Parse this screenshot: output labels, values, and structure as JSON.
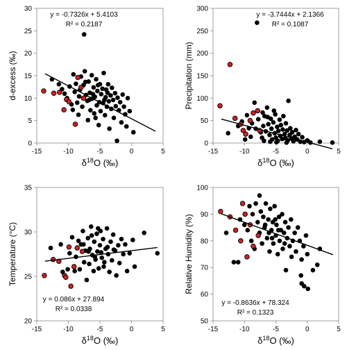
{
  "chart_data": [
    {
      "type": "scatter",
      "xlabel": "δ18O (‰)",
      "ylabel": "d-excess (‰)",
      "xlim": [
        -15,
        5
      ],
      "ylim": [
        0,
        30
      ],
      "xticks": [
        -15,
        -10,
        -5,
        0,
        5
      ],
      "yticks": [
        0,
        5,
        10,
        15,
        20,
        25,
        30
      ],
      "xtick_labels": [
        "-15",
        "-10",
        "-5",
        "0",
        "5"
      ],
      "ytick_labels": [
        "0",
        "5",
        "10",
        "15",
        "20",
        "25",
        "30"
      ],
      "equation": "y = -0.7326x + 5.4103",
      "r2": "R² = 0.2187",
      "trendline": {
        "slope": -0.7326,
        "intercept": 5.4103,
        "x_range": [
          -13.7,
          3.8
        ]
      },
      "colors": {
        "black_points": "#000000",
        "red_points": "#cc2222"
      },
      "red_points": [
        [
          -13.9,
          11.6
        ],
        [
          -12.3,
          11.1
        ],
        [
          -11.4,
          11.3
        ],
        [
          -10.7,
          7.4
        ],
        [
          -10.3,
          9.7
        ],
        [
          -9.9,
          9.2
        ],
        [
          -8.9,
          4.2
        ],
        [
          -8.5,
          14.6
        ],
        [
          -8.0,
          12.4
        ],
        [
          -7.6,
          10.0
        ]
      ],
      "black_points": [
        [
          -7.5,
          24.2
        ],
        [
          -12.6,
          14.2
        ],
        [
          -11.5,
          13.1
        ],
        [
          -11.0,
          12.0
        ],
        [
          -10.6,
          11.0
        ],
        [
          -10.2,
          10.0
        ],
        [
          -9.8,
          12.6
        ],
        [
          -9.5,
          8.6
        ],
        [
          -9.2,
          15.3
        ],
        [
          -9.0,
          11.4
        ],
        [
          -8.8,
          13.2
        ],
        [
          -8.6,
          9.0
        ],
        [
          -8.4,
          6.3
        ],
        [
          -8.2,
          11.8
        ],
        [
          -8.0,
          14.8
        ],
        [
          -7.8,
          8.1
        ],
        [
          -7.6,
          12.9
        ],
        [
          -7.4,
          16.0
        ],
        [
          -7.2,
          10.7
        ],
        [
          -7.0,
          9.4
        ],
        [
          -6.9,
          5.1
        ],
        [
          -6.8,
          13.7
        ],
        [
          -6.6,
          11.2
        ],
        [
          -6.5,
          7.3
        ],
        [
          -6.3,
          15.1
        ],
        [
          -6.2,
          9.9
        ],
        [
          -6.0,
          12.4
        ],
        [
          -5.9,
          6.6
        ],
        [
          -5.8,
          10.3
        ],
        [
          -5.6,
          14.2
        ],
        [
          -5.5,
          8.4
        ],
        [
          -5.4,
          11.6
        ],
        [
          -5.2,
          4.0
        ],
        [
          -5.1,
          9.1
        ],
        [
          -5.0,
          13.1
        ],
        [
          -4.9,
          7.1
        ],
        [
          -4.8,
          10.9
        ],
        [
          -4.6,
          12.1
        ],
        [
          -4.5,
          8.9
        ],
        [
          -4.4,
          15.6
        ],
        [
          -4.2,
          6.2
        ],
        [
          -4.1,
          10.2
        ],
        [
          -4.0,
          11.9
        ],
        [
          -3.9,
          8.1
        ],
        [
          -3.7,
          13.1
        ],
        [
          -3.6,
          9.3
        ],
        [
          -3.5,
          3.2
        ],
        [
          -3.3,
          10.6
        ],
        [
          -3.2,
          7.6
        ],
        [
          -3.1,
          12.3
        ],
        [
          -2.9,
          9.6
        ],
        [
          -2.8,
          5.6
        ],
        [
          -2.6,
          11.1
        ],
        [
          -2.5,
          8.2
        ],
        [
          -2.3,
          0.5
        ],
        [
          -2.2,
          10.1
        ],
        [
          -2.0,
          7.3
        ],
        [
          -1.8,
          9.1
        ],
        [
          -1.6,
          4.6
        ],
        [
          -1.4,
          10.8
        ],
        [
          -1.2,
          8.1
        ],
        [
          -1.0,
          6.4
        ],
        [
          -0.8,
          3.7
        ],
        [
          -0.6,
          10.0
        ],
        [
          -0.3,
          7.1
        ],
        [
          0.3,
          2.4
        ],
        [
          -6.7,
          9.6
        ],
        [
          -7.3,
          13.6
        ],
        [
          -5.3,
          12.9
        ],
        [
          -4.3,
          9.6
        ],
        [
          -3.8,
          11.2
        ],
        [
          -6.1,
          10.9
        ],
        [
          -8.3,
          10.4
        ],
        [
          -9.3,
          7.4
        ],
        [
          -5.7,
          5.6
        ]
      ]
    },
    {
      "type": "scatter",
      "xlabel": "δ18O (‰)",
      "ylabel": "Precipitation (mm)",
      "xlim": [
        -15,
        5
      ],
      "ylim": [
        0,
        300
      ],
      "xticks": [
        -15,
        -10,
        -5,
        0,
        5
      ],
      "yticks": [
        0,
        50,
        100,
        150,
        200,
        250,
        300
      ],
      "xtick_labels": [
        "-15",
        "-10",
        "-5",
        "0",
        "5"
      ],
      "ytick_labels": [
        "0",
        "50",
        "100",
        "150",
        "200",
        "250",
        "300"
      ],
      "equation": "y = -3.7444x + 2.1366",
      "r2": "R² = 0.1087",
      "trendline": {
        "slope": -3.7444,
        "intercept": 2.1366,
        "x_range": [
          -13.7,
          4.0
        ]
      },
      "colors": {
        "black_points": "#000000",
        "red_points": "#cc2222"
      },
      "red_points": [
        [
          -13.9,
          83
        ],
        [
          -12.3,
          175
        ],
        [
          -11.5,
          55
        ],
        [
          -10.6,
          42
        ],
        [
          -10.2,
          28
        ],
        [
          -9.8,
          20
        ],
        [
          -9.1,
          50
        ],
        [
          -8.6,
          67
        ],
        [
          -7.9,
          72
        ],
        [
          -7.6,
          28
        ]
      ],
      "black_points": [
        [
          -8.0,
          268
        ],
        [
          -12.6,
          22
        ],
        [
          -11.0,
          38
        ],
        [
          -10.4,
          48
        ],
        [
          -9.6,
          62
        ],
        [
          -9.3,
          33
        ],
        [
          -9.0,
          14
        ],
        [
          -8.8,
          44
        ],
        [
          -8.4,
          90
        ],
        [
          -8.2,
          32
        ],
        [
          -7.8,
          53
        ],
        [
          -7.4,
          24
        ],
        [
          -7.2,
          12
        ],
        [
          -7.0,
          38
        ],
        [
          -6.8,
          60
        ],
        [
          -6.6,
          26
        ],
        [
          -6.4,
          79
        ],
        [
          -6.2,
          42
        ],
        [
          -6.0,
          18
        ],
        [
          -5.8,
          54
        ],
        [
          -5.7,
          32
        ],
        [
          -5.6,
          8
        ],
        [
          -5.4,
          46
        ],
        [
          -5.2,
          22
        ],
        [
          -5.1,
          64
        ],
        [
          -5.0,
          12
        ],
        [
          -4.8,
          36
        ],
        [
          -4.7,
          5
        ],
        [
          -4.6,
          27
        ],
        [
          -4.4,
          52
        ],
        [
          -4.3,
          16
        ],
        [
          -4.2,
          40
        ],
        [
          -4.0,
          9
        ],
        [
          -3.9,
          30
        ],
        [
          -3.8,
          60
        ],
        [
          -3.6,
          20
        ],
        [
          -3.5,
          11
        ],
        [
          -3.4,
          44
        ],
        [
          -3.2,
          28
        ],
        [
          -3.1,
          6
        ],
        [
          -3.0,
          94
        ],
        [
          -2.8,
          18
        ],
        [
          -2.7,
          33
        ],
        [
          -2.5,
          10
        ],
        [
          -2.4,
          24
        ],
        [
          -2.2,
          4
        ],
        [
          -2.0,
          14
        ],
        [
          -1.8,
          29
        ],
        [
          -1.6,
          8
        ],
        [
          -1.4,
          20
        ],
        [
          -1.1,
          3
        ],
        [
          -0.8,
          13
        ],
        [
          -0.5,
          2
        ],
        [
          0.0,
          6
        ],
        [
          0.5,
          1
        ],
        [
          2.0,
          3
        ],
        [
          4.0,
          1
        ],
        [
          -6.9,
          5
        ],
        [
          -5.9,
          3
        ],
        [
          -4.9,
          2
        ],
        [
          -3.3,
          1
        ],
        [
          -7.1,
          68
        ],
        [
          -6.3,
          58
        ],
        [
          -5.3,
          72
        ],
        [
          -9.9,
          8
        ]
      ]
    },
    {
      "type": "scatter",
      "xlabel": "δ18O (‰)",
      "ylabel": "Temperature (°C)",
      "xlim": [
        -15,
        5
      ],
      "ylim": [
        20,
        35
      ],
      "xticks": [
        -15,
        -10,
        -5,
        0,
        5
      ],
      "yticks": [
        20,
        25,
        30,
        35
      ],
      "xtick_labels": [
        "-15",
        "-10",
        "-5",
        "0",
        "5"
      ],
      "ytick_labels": [
        "20",
        "25",
        "30",
        "35"
      ],
      "equation": "y = 0.086x + 27.894",
      "r2": "R² = 0.0338",
      "trendline": {
        "slope": 0.086,
        "intercept": 27.894,
        "x_range": [
          -13.7,
          4.1
        ]
      },
      "colors": {
        "black_points": "#000000",
        "red_points": "#cc2222"
      },
      "red_points": [
        [
          -13.8,
          25.1
        ],
        [
          -12.4,
          26.9
        ],
        [
          -11.5,
          26.7
        ],
        [
          -10.6,
          25.1
        ],
        [
          -10.4,
          24.9
        ],
        [
          -9.9,
          28.3
        ],
        [
          -9.6,
          23.9
        ],
        [
          -9.1,
          26.1
        ],
        [
          -8.6,
          28.2
        ],
        [
          -7.8,
          27.8
        ]
      ],
      "black_points": [
        [
          -12.8,
          28.2
        ],
        [
          -11.2,
          28.6
        ],
        [
          -10.9,
          25.5
        ],
        [
          -10.1,
          25.8
        ],
        [
          -9.8,
          27.6
        ],
        [
          -9.4,
          29.4
        ],
        [
          -9.0,
          25.6
        ],
        [
          -8.8,
          27.2
        ],
        [
          -8.4,
          29.0
        ],
        [
          -8.2,
          25.8
        ],
        [
          -8.0,
          28.6
        ],
        [
          -7.7,
          30.1
        ],
        [
          -7.5,
          26.6
        ],
        [
          -7.3,
          27.9
        ],
        [
          -7.1,
          24.6
        ],
        [
          -6.9,
          29.3
        ],
        [
          -6.7,
          26.4
        ],
        [
          -6.6,
          28.1
        ],
        [
          -6.4,
          30.6
        ],
        [
          -6.2,
          27.4
        ],
        [
          -6.0,
          25.6
        ],
        [
          -5.9,
          28.9
        ],
        [
          -5.7,
          26.9
        ],
        [
          -5.5,
          29.8
        ],
        [
          -5.4,
          27.8
        ],
        [
          -5.2,
          25.9
        ],
        [
          -5.0,
          28.5
        ],
        [
          -4.9,
          30.1
        ],
        [
          -4.7,
          27.1
        ],
        [
          -4.5,
          29.2
        ],
        [
          -4.3,
          26.6
        ],
        [
          -4.1,
          28.1
        ],
        [
          -3.9,
          30.4
        ],
        [
          -3.7,
          27.5
        ],
        [
          -3.5,
          25.5
        ],
        [
          -3.3,
          28.9
        ],
        [
          -3.1,
          26.8
        ],
        [
          -2.9,
          29.7
        ],
        [
          -2.6,
          27.9
        ],
        [
          -2.4,
          25.1
        ],
        [
          -2.1,
          28.5
        ],
        [
          -1.9,
          26.5
        ],
        [
          -1.6,
          29.2
        ],
        [
          -1.3,
          27.5
        ],
        [
          -1.0,
          28.6
        ],
        [
          -0.7,
          25.6
        ],
        [
          -0.3,
          27.6
        ],
        [
          0.2,
          29.1
        ],
        [
          0.5,
          26.1
        ],
        [
          2.0,
          29.9
        ],
        [
          4.1,
          27.6
        ],
        [
          -6.8,
          27.8
        ],
        [
          -5.8,
          27.2
        ],
        [
          -4.8,
          27.7
        ],
        [
          -3.8,
          28.3
        ],
        [
          -7.6,
          28.6
        ],
        [
          -6.3,
          29.6
        ],
        [
          -5.3,
          30.4
        ],
        [
          -4.4,
          26.1
        ],
        [
          -2.8,
          28.0
        ]
      ]
    },
    {
      "type": "scatter",
      "xlabel": "δ18O (‰)",
      "ylabel": "Relative Humidity (%)",
      "xlim": [
        -15,
        5
      ],
      "ylim": [
        50,
        100
      ],
      "xticks": [
        -15,
        -10,
        -5,
        0,
        5
      ],
      "yticks": [
        50,
        60,
        70,
        80,
        90,
        100
      ],
      "xtick_labels": [
        "-15",
        "-10",
        "-5",
        "0",
        "5"
      ],
      "ytick_labels": [
        "50",
        "60",
        "70",
        "80",
        "90",
        "100"
      ],
      "equation": "y = -0.8636x + 78.324",
      "r2": "R² = 0.1323",
      "trendline": {
        "slope": -0.8636,
        "intercept": 78.324,
        "x_range": [
          -13.7,
          4.1
        ]
      },
      "colors": {
        "black_points": "#000000",
        "red_points": "#cc2222"
      },
      "red_points": [
        [
          -13.8,
          91
        ],
        [
          -12.3,
          89
        ],
        [
          -11.4,
          84
        ],
        [
          -10.6,
          80
        ],
        [
          -10.3,
          94
        ],
        [
          -9.9,
          90
        ],
        [
          -9.6,
          74
        ],
        [
          -9.1,
          86
        ],
        [
          -8.6,
          78
        ],
        [
          -7.8,
          82
        ]
      ],
      "black_points": [
        [
          -7.6,
          97
        ],
        [
          -12.9,
          83
        ],
        [
          -11.7,
          72
        ],
        [
          -11.0,
          72
        ],
        [
          -10.7,
          88
        ],
        [
          -10.0,
          86
        ],
        [
          -9.5,
          84
        ],
        [
          -9.2,
          93
        ],
        [
          -8.9,
          80
        ],
        [
          -8.7,
          90
        ],
        [
          -8.4,
          77
        ],
        [
          -8.2,
          94
        ],
        [
          -7.9,
          87
        ],
        [
          -7.6,
          83
        ],
        [
          -7.4,
          91
        ],
        [
          -7.2,
          79
        ],
        [
          -7.0,
          89
        ],
        [
          -6.8,
          85
        ],
        [
          -6.6,
          94
        ],
        [
          -6.4,
          81
        ],
        [
          -6.2,
          88
        ],
        [
          -6.0,
          76
        ],
        [
          -5.9,
          92
        ],
        [
          -5.7,
          84
        ],
        [
          -5.5,
          87
        ],
        [
          -5.4,
          79
        ],
        [
          -5.2,
          93
        ],
        [
          -5.0,
          82
        ],
        [
          -4.9,
          86
        ],
        [
          -4.7,
          75
        ],
        [
          -4.5,
          89
        ],
        [
          -4.4,
          80
        ],
        [
          -4.2,
          84
        ],
        [
          -4.0,
          90
        ],
        [
          -3.9,
          77
        ],
        [
          -3.7,
          83
        ],
        [
          -3.5,
          87
        ],
        [
          -3.4,
          69
        ],
        [
          -3.2,
          81
        ],
        [
          -3.0,
          85
        ],
        [
          -2.8,
          78
        ],
        [
          -2.6,
          88
        ],
        [
          -2.5,
          74
        ],
        [
          -2.3,
          80
        ],
        [
          -2.0,
          83
        ],
        [
          -1.8,
          76
        ],
        [
          -1.5,
          85
        ],
        [
          -1.2,
          80
        ],
        [
          -0.9,
          73
        ],
        [
          -0.6,
          78
        ],
        [
          -0.2,
          82
        ],
        [
          0.0,
          75
        ],
        [
          -1.0,
          67
        ],
        [
          -0.9,
          64
        ],
        [
          -0.5,
          63
        ],
        [
          0.1,
          62
        ],
        [
          0.9,
          69
        ],
        [
          1.6,
          71
        ],
        [
          2.0,
          77
        ],
        [
          -6.7,
          86
        ],
        [
          -5.6,
          81
        ],
        [
          -4.6,
          84
        ],
        [
          -3.6,
          79
        ],
        [
          -6.1,
          83
        ],
        [
          -5.1,
          88
        ]
      ]
    }
  ]
}
